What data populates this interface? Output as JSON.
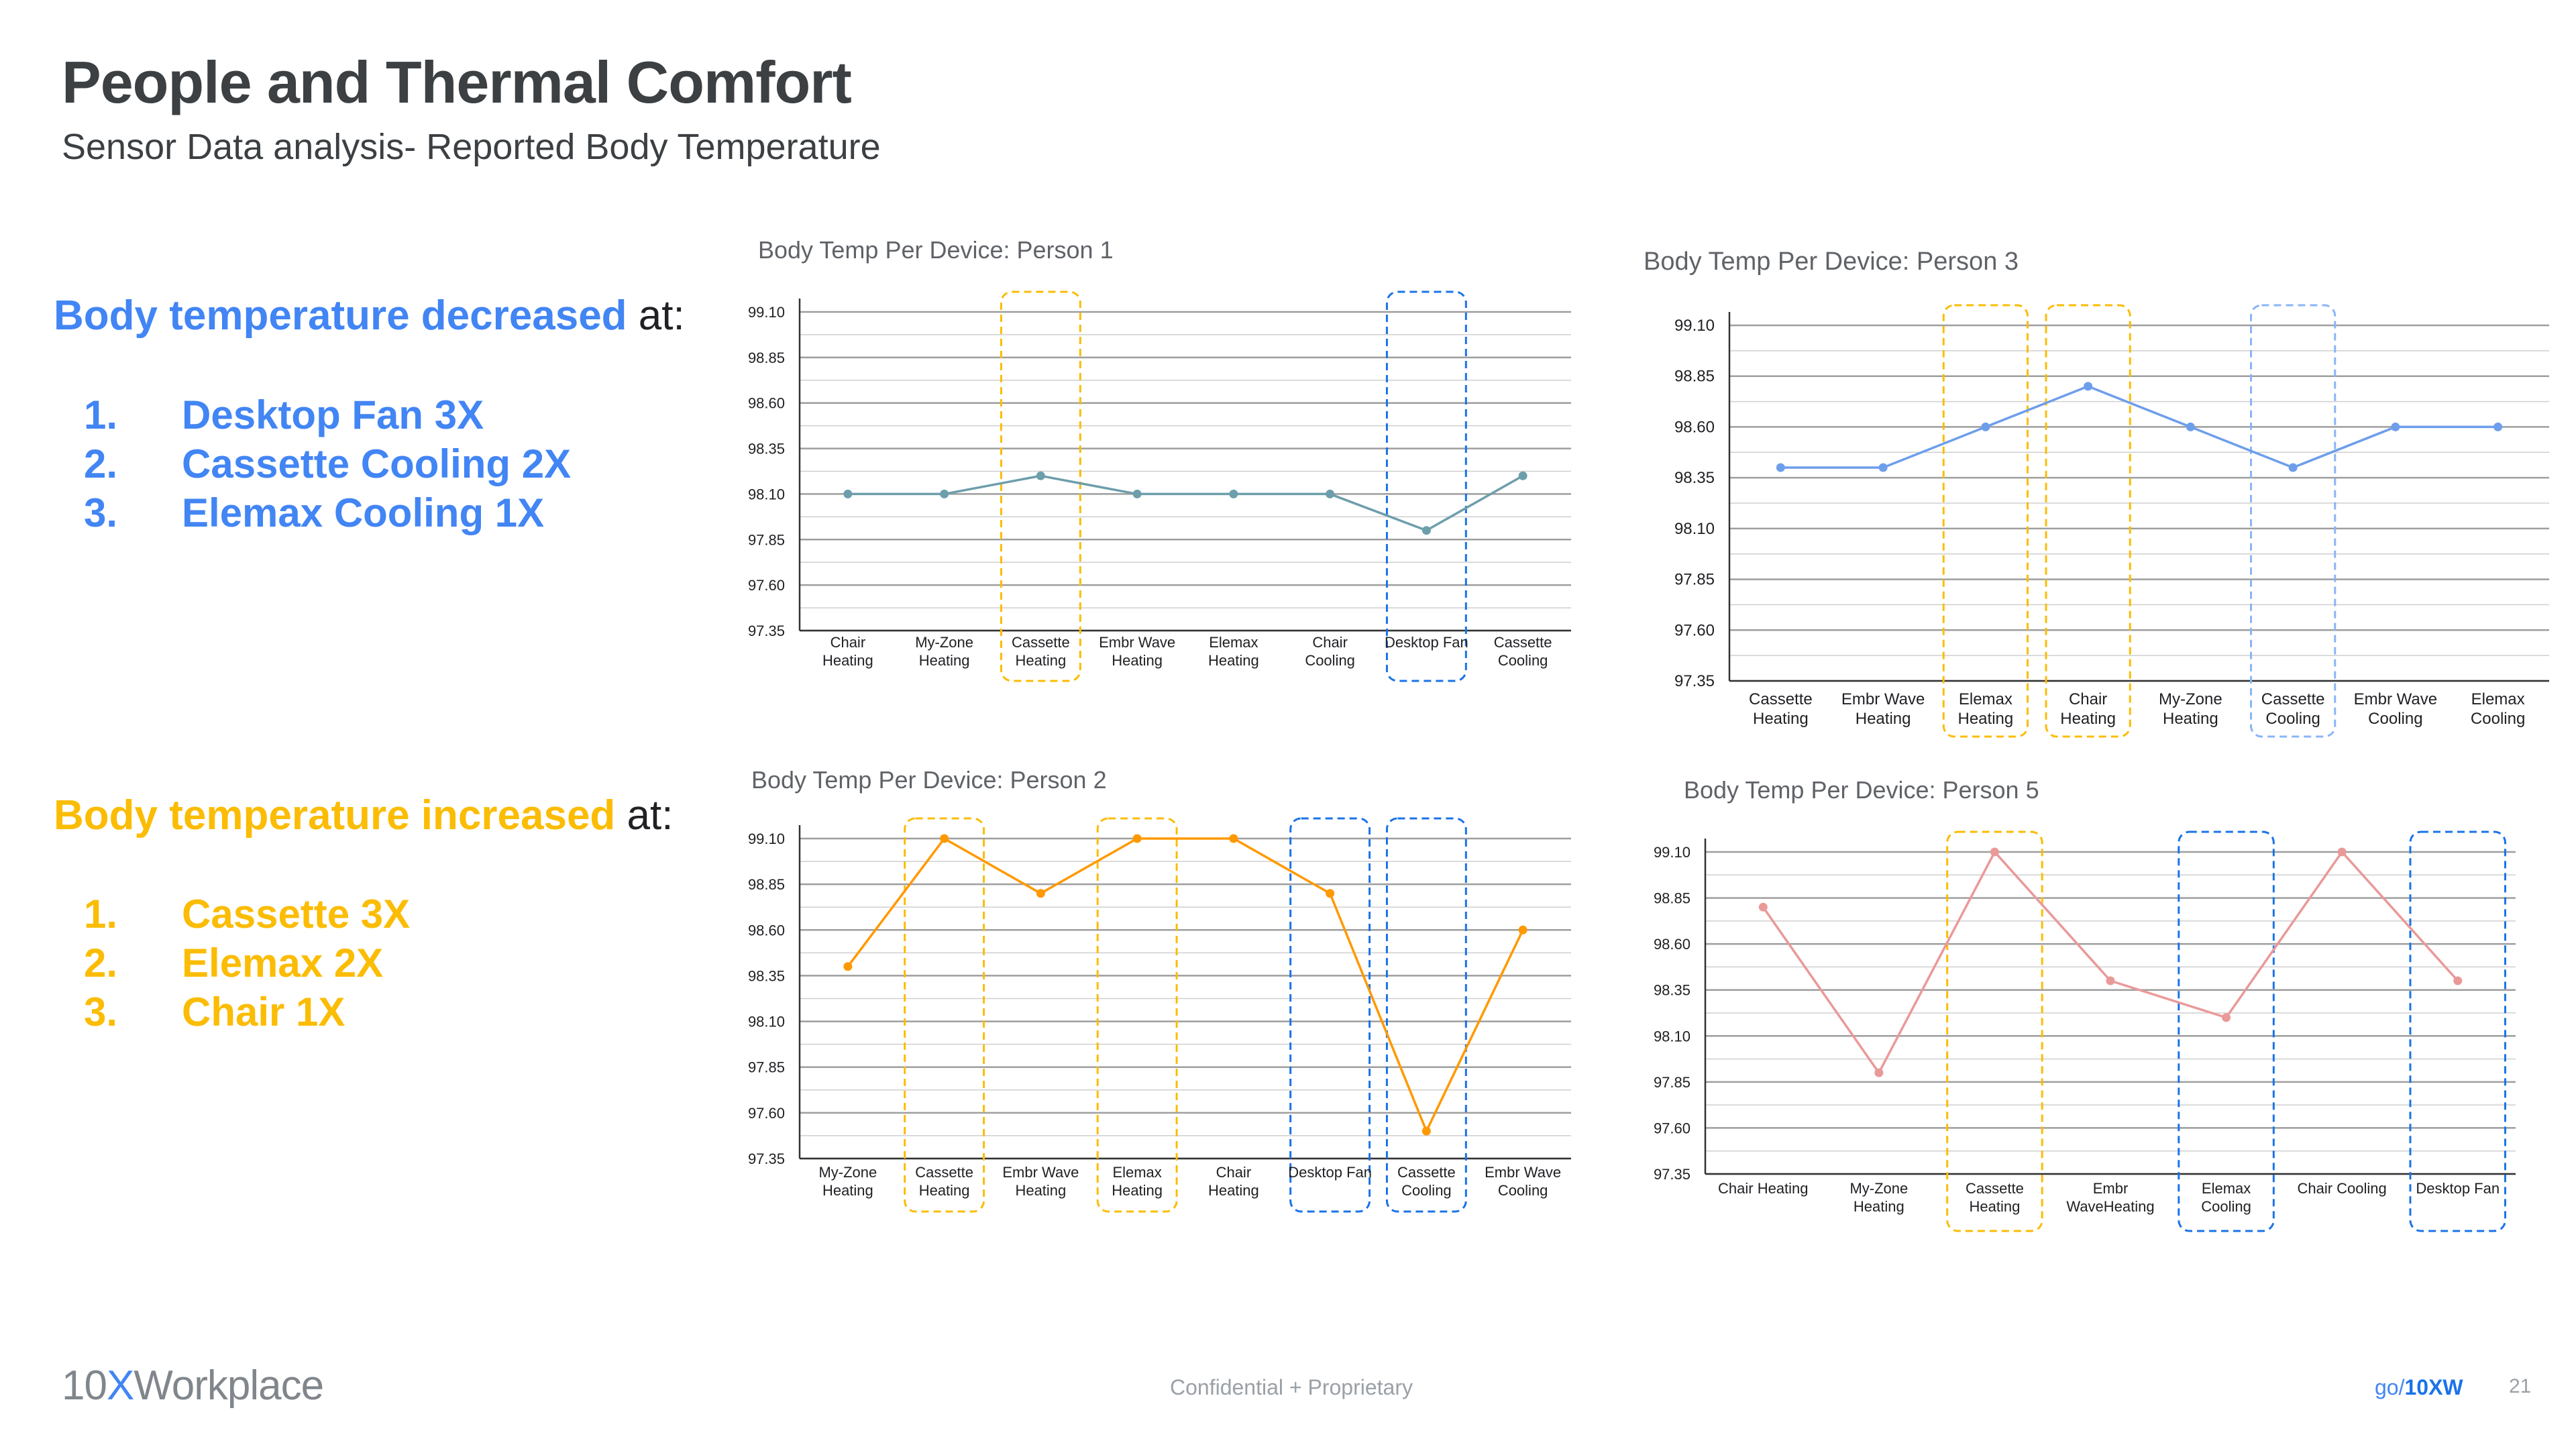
{
  "slide": {
    "title": "People and Thermal Comfort",
    "subtitle": "Sensor Data analysis- Reported Body Temperature"
  },
  "decreased": {
    "heading_emphasis": "Body temperature decreased",
    "heading_rest": " at:",
    "items": [
      {
        "num": "1.",
        "text": "Desktop Fan 3X"
      },
      {
        "num": "2.",
        "text": "Cassette Cooling 2X"
      },
      {
        "num": "3.",
        "text": "Elemax Cooling 1X"
      }
    ]
  },
  "increased": {
    "heading_emphasis": "Body temperature increased",
    "heading_rest": " at:",
    "items": [
      {
        "num": "1.",
        "text": "Cassette 3X"
      },
      {
        "num": "2.",
        "text": "Elemax 2X"
      },
      {
        "num": "3.",
        "text": "Chair 1X"
      }
    ]
  },
  "colors": {
    "decrease_blue": "#4285f4",
    "increase_yellow": "#fbbc04"
  },
  "chart_data": [
    {
      "id": "person1",
      "type": "line",
      "title": "Body Temp Per Device: Person 1",
      "categories": [
        [
          "Chair",
          "Heating"
        ],
        [
          "My-Zone",
          "Heating"
        ],
        [
          "Cassette",
          "Heating"
        ],
        [
          "Embr Wave",
          "Heating"
        ],
        [
          "Elemax",
          "Heating"
        ],
        [
          "Chair",
          "Cooling"
        ],
        [
          "Desktop Fan"
        ],
        [
          "Cassette",
          "Cooling"
        ]
      ],
      "values": [
        98.1,
        98.1,
        98.2,
        98.1,
        98.1,
        98.1,
        97.9,
        98.2
      ],
      "ylim": [
        97.35,
        99.1
      ],
      "yticks": [
        "99.10",
        "98.85",
        "98.60",
        "98.35",
        "98.10",
        "97.85",
        "97.60",
        "97.35"
      ],
      "color": "#6d9eab",
      "highlights": [
        {
          "index": 2,
          "color": "#fbbc04"
        },
        {
          "index": 6,
          "color": "#1a73e8"
        }
      ]
    },
    {
      "id": "person3",
      "type": "line",
      "title": "Body Temp Per Device: Person 3",
      "categories": [
        [
          "Cassette",
          "Heating"
        ],
        [
          "Embr Wave",
          "Heating"
        ],
        [
          "Elemax",
          "Heating"
        ],
        [
          "Chair",
          "Heating"
        ],
        [
          "My-Zone",
          "Heating"
        ],
        [
          "Cassette",
          "Cooling"
        ],
        [
          "Embr Wave",
          "Cooling"
        ],
        [
          "Elemax",
          "Cooling"
        ]
      ],
      "values": [
        98.4,
        98.4,
        98.6,
        98.8,
        98.6,
        98.4,
        98.6,
        98.6
      ],
      "ylim": [
        97.35,
        99.1
      ],
      "yticks": [
        "99.10",
        "98.85",
        "98.60",
        "98.35",
        "98.10",
        "97.85",
        "97.60",
        "97.35"
      ],
      "color": "#6d9eeb",
      "highlights": [
        {
          "index": 2,
          "color": "#fbbc04"
        },
        {
          "index": 3,
          "color": "#fbbc04"
        },
        {
          "index": 5,
          "color": "#8ab4f8"
        }
      ]
    },
    {
      "id": "person2",
      "type": "line",
      "title": "Body Temp Per Device: Person 2",
      "categories": [
        [
          "My-Zone",
          "Heating"
        ],
        [
          "Cassette",
          "Heating"
        ],
        [
          "Embr Wave",
          "Heating"
        ],
        [
          "Elemax",
          "Heating"
        ],
        [
          "Chair",
          "Heating"
        ],
        [
          "Desktop Fan"
        ],
        [
          "Cassette",
          "Cooling"
        ],
        [
          "Embr Wave",
          "Cooling"
        ]
      ],
      "values": [
        98.4,
        99.1,
        98.8,
        99.1,
        99.1,
        98.8,
        97.5,
        98.6
      ],
      "ylim": [
        97.35,
        99.1
      ],
      "yticks": [
        "99.10",
        "98.85",
        "98.60",
        "98.35",
        "98.10",
        "97.85",
        "97.60",
        "97.35"
      ],
      "color": "#ff9900",
      "highlights": [
        {
          "index": 1,
          "color": "#fbbc04"
        },
        {
          "index": 3,
          "color": "#fbbc04"
        },
        {
          "index": 5,
          "color": "#1a73e8"
        },
        {
          "index": 6,
          "color": "#1a73e8"
        }
      ]
    },
    {
      "id": "person5",
      "type": "line",
      "title": "Body Temp Per Device: Person 5",
      "categories": [
        [
          "Chair Heating"
        ],
        [
          "My-Zone",
          "Heating"
        ],
        [
          "Cassette",
          "Heating"
        ],
        [
          "Embr",
          "WaveHeating"
        ],
        [
          "Elemax",
          "Cooling"
        ],
        [
          "Chair Cooling"
        ],
        [
          "Desktop Fan"
        ]
      ],
      "values": [
        98.8,
        97.9,
        99.1,
        98.4,
        98.2,
        99.1,
        98.4
      ],
      "ylim": [
        97.35,
        99.1
      ],
      "yticks": [
        "99.10",
        "98.85",
        "98.60",
        "98.35",
        "98.10",
        "97.85",
        "97.60",
        "97.35"
      ],
      "color": "#ea9999",
      "highlights": [
        {
          "index": 2,
          "color": "#fbbc04"
        },
        {
          "index": 4,
          "color": "#1a73e8"
        },
        {
          "index": 6,
          "color": "#1a73e8"
        }
      ]
    }
  ],
  "footer": {
    "logo_prefix": "10",
    "logo_x": "X",
    "logo_suffix": "Workplace",
    "confidential": "Confidential + Proprietary",
    "go_prefix": "go/",
    "go_link": "10XW",
    "page_number": "21"
  }
}
